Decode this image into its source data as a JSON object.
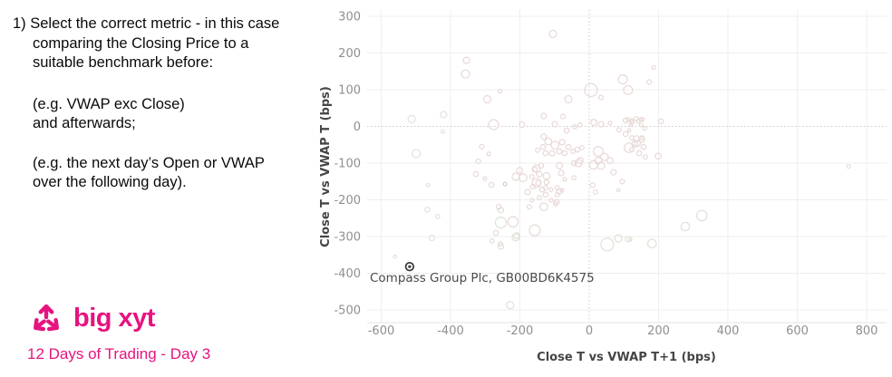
{
  "left_panel": {
    "para1": "1) Select the correct metric - in this case\ncomparing the Closing Price to a\nsuitable benchmark before:",
    "para2": "(e.g. VWAP exc Close)\nand afterwards;",
    "para3": "(e.g. the next day’s Open or VWAP\nover the following day)."
  },
  "brand": {
    "name": "big xyt",
    "tagline": "12 Days of Trading - Day 3",
    "color": "#e6137f"
  },
  "chart_data": {
    "type": "scatter",
    "xlabel": "Close T vs VWAP T+1 (bps)",
    "ylabel": "Close T vs VWAP T (bps)",
    "xlim": [
      -640,
      860
    ],
    "ylim": [
      -540,
      320
    ],
    "xticks": [
      -600,
      -400,
      -200,
      0,
      200,
      400,
      600,
      800
    ],
    "yticks": [
      300,
      200,
      100,
      0,
      -100,
      -200,
      -300,
      -400,
      -500
    ],
    "grid": true,
    "zero_lines": "dotted",
    "annotation": {
      "text": "Compass Group Plc, GB00BD6K4575",
      "x": -518,
      "y": -382
    },
    "highlight_point": {
      "x": -518,
      "y": -382,
      "color": "#3c3c3c"
    },
    "style": {
      "grid_color": "#f0eeee",
      "zero_line_color": "#c9c9c9",
      "axis_line_color": "#e5e3e3",
      "tick_color": "#8f8f8f",
      "title_color": "#454545",
      "annotation_color": "#4a4a4a",
      "bubble_colors": {
        "p": "#e8d9d7",
        "g": "#dce3d5",
        "n": "#e3e1e1",
        "d": "#d9c4c2"
      }
    },
    "points": [
      [
        -105,
        252,
        4,
        "p"
      ],
      [
        -354,
        180,
        3.5,
        "p"
      ],
      [
        -357,
        143,
        4.5,
        "p"
      ],
      [
        -294,
        74,
        4,
        "p"
      ],
      [
        -257,
        96,
        2,
        "p"
      ],
      [
        -131,
        28,
        3,
        "p"
      ],
      [
        -76,
        27,
        2.5,
        "p"
      ],
      [
        -276,
        5,
        5.5,
        "p"
      ],
      [
        -194,
        5,
        3,
        "p"
      ],
      [
        -60,
        74,
        4,
        "p"
      ],
      [
        5,
        99,
        7,
        "p"
      ],
      [
        34,
        79,
        2.5,
        "p"
      ],
      [
        97,
        128,
        5,
        "p"
      ],
      [
        112,
        99,
        5,
        "p"
      ],
      [
        186,
        161,
        2,
        "p"
      ],
      [
        173,
        121,
        2.5,
        "p"
      ],
      [
        -512,
        20,
        4,
        "n"
      ],
      [
        -420,
        32,
        3.5,
        "n"
      ],
      [
        -422,
        -14,
        2,
        "n"
      ],
      [
        -499,
        -74,
        4.5,
        "n"
      ],
      [
        -465,
        -160,
        1.8,
        "n"
      ],
      [
        -467,
        -227,
        2.7,
        "n"
      ],
      [
        -437,
        -245,
        2.3,
        "n"
      ],
      [
        -454,
        -304,
        3,
        "n"
      ],
      [
        -560,
        -355,
        1.8,
        "n"
      ],
      [
        748,
        -109,
        2,
        "n"
      ],
      [
        -228,
        -487,
        4,
        "g"
      ],
      [
        -255,
        -262,
        6,
        "g"
      ],
      [
        -255,
        -228,
        3,
        "g"
      ],
      [
        -212,
        -302,
        4,
        "g"
      ],
      [
        -255,
        -327,
        3,
        "g"
      ],
      [
        325,
        -243,
        5.7,
        "g"
      ],
      [
        277,
        -273,
        4.7,
        "g"
      ],
      [
        118,
        -308,
        2,
        "g"
      ],
      [
        181,
        -319,
        4.7,
        "g"
      ],
      [
        52,
        -322,
        7,
        "g"
      ],
      [
        84,
        -305,
        4,
        "g"
      ],
      [
        112,
        -307,
        3,
        "g"
      ],
      [
        -327,
        -130,
        2.7,
        "p"
      ],
      [
        -301,
        -142,
        2,
        "p"
      ],
      [
        -282,
        -159,
        2.7,
        "p"
      ],
      [
        -243,
        -157,
        2,
        "d"
      ],
      [
        -212,
        -137,
        4,
        "p"
      ],
      [
        -201,
        -120,
        3.3,
        "p"
      ],
      [
        -191,
        -140,
        4.3,
        "p"
      ],
      [
        -152,
        -115,
        4,
        "p"
      ],
      [
        -139,
        -107,
        2.7,
        "p"
      ],
      [
        -123,
        -135,
        3.7,
        "p"
      ],
      [
        -123,
        -152,
        2.7,
        "p"
      ],
      [
        -152,
        -154,
        4.7,
        "p"
      ],
      [
        -136,
        -172,
        2.7,
        "p"
      ],
      [
        -178,
        -179,
        3,
        "p"
      ],
      [
        -165,
        -201,
        2,
        "p"
      ],
      [
        -86,
        -107,
        3.3,
        "p"
      ],
      [
        -81,
        -127,
        3,
        "p"
      ],
      [
        -71,
        -144,
        2,
        "p"
      ],
      [
        -44,
        -140,
        2.3,
        "p"
      ],
      [
        -86,
        -177,
        3,
        "p"
      ],
      [
        -94,
        -206,
        2.7,
        "p"
      ],
      [
        -131,
        -219,
        4.3,
        "p"
      ],
      [
        -173,
        -219,
        2.3,
        "p"
      ],
      [
        -261,
        -219,
        2.7,
        "p"
      ],
      [
        -220,
        -260,
        5.7,
        "p"
      ],
      [
        -157,
        -283,
        6,
        "p"
      ],
      [
        -209,
        -298,
        3.3,
        "g"
      ],
      [
        -269,
        -290,
        2.7,
        "p"
      ],
      [
        -280,
        -312,
        2.3,
        "p"
      ],
      [
        -256,
        -320,
        2.3,
        "p"
      ],
      [
        18,
        -179,
        2.3,
        "p"
      ],
      [
        84,
        -174,
        1.7,
        "p"
      ],
      [
        -31,
        -100,
        4,
        "p"
      ],
      [
        13,
        -105,
        4.7,
        "p"
      ],
      [
        34,
        -107,
        4,
        "p"
      ],
      [
        -99,
        6,
        3,
        "p"
      ],
      [
        -65,
        -11,
        2.7,
        "p"
      ],
      [
        -42,
        -1,
        2.3,
        "p"
      ],
      [
        -26,
        4,
        2.3,
        "p"
      ],
      [
        13,
        11,
        3.3,
        "p"
      ],
      [
        34,
        6,
        3,
        "p"
      ],
      [
        60,
        9,
        2,
        "p"
      ],
      [
        105,
        16,
        2.7,
        "p"
      ],
      [
        123,
        11,
        2.3,
        "p"
      ],
      [
        141,
        14,
        2,
        "p"
      ],
      [
        154,
        19,
        2,
        "p"
      ],
      [
        86,
        -9,
        2.3,
        "p"
      ],
      [
        105,
        -21,
        2.7,
        "p"
      ],
      [
        123,
        -31,
        2.3,
        "p"
      ],
      [
        152,
        -36,
        3,
        "p"
      ],
      [
        -131,
        -28,
        3,
        "p"
      ],
      [
        -118,
        -41,
        3.7,
        "p"
      ],
      [
        -99,
        -51,
        4.3,
        "p"
      ],
      [
        -78,
        -43,
        3,
        "p"
      ],
      [
        -60,
        -56,
        2.7,
        "p"
      ],
      [
        -133,
        -56,
        2.7,
        "p"
      ],
      [
        -149,
        -65,
        2.3,
        "p"
      ],
      [
        -126,
        -73,
        2.7,
        "p"
      ],
      [
        -107,
        -73,
        3,
        "p"
      ],
      [
        -86,
        -68,
        2.7,
        "p"
      ],
      [
        -71,
        -73,
        2.7,
        "p"
      ],
      [
        -47,
        -68,
        2.3,
        "p"
      ],
      [
        -34,
        -63,
        2.7,
        "p"
      ],
      [
        -21,
        -58,
        2.3,
        "p"
      ],
      [
        26,
        -68,
        5.3,
        "p"
      ],
      [
        44,
        -83,
        4,
        "p"
      ],
      [
        60,
        -93,
        3.3,
        "p"
      ],
      [
        26,
        -93,
        3.7,
        "p"
      ],
      [
        -26,
        -93,
        3.3,
        "p"
      ],
      [
        -44,
        -100,
        2.7,
        "p"
      ],
      [
        139,
        -46,
        3.3,
        "p"
      ],
      [
        157,
        -56,
        2.7,
        "p"
      ],
      [
        123,
        -63,
        2.3,
        "p"
      ],
      [
        144,
        -73,
        2.7,
        "p"
      ],
      [
        162,
        -83,
        2.3,
        "p"
      ],
      [
        -157,
        -117,
        2.7,
        "p"
      ],
      [
        -144,
        -130,
        3,
        "p"
      ],
      [
        -165,
        -137,
        2.3,
        "p"
      ],
      [
        -146,
        -154,
        3,
        "p"
      ],
      [
        -162,
        -164,
        2.7,
        "p"
      ],
      [
        -126,
        -167,
        2.3,
        "p"
      ],
      [
        -110,
        -172,
        2,
        "p"
      ],
      [
        -92,
        -167,
        2.3,
        "p"
      ],
      [
        -78,
        -174,
        2,
        "p"
      ],
      [
        -92,
        -186,
        2.3,
        "p"
      ],
      [
        -126,
        -186,
        2.7,
        "p"
      ],
      [
        -144,
        -194,
        2.3,
        "p"
      ],
      [
        -110,
        -201,
        2,
        "p"
      ],
      [
        -97,
        -211,
        2.3,
        "p"
      ],
      [
        112,
        19,
        2,
        "p"
      ],
      [
        123,
        16,
        2,
        "p"
      ],
      [
        136,
        21,
        2.3,
        "p"
      ],
      [
        149,
        19,
        2,
        "p"
      ],
      [
        120,
        4,
        1.7,
        "p"
      ],
      [
        149,
        4,
        2,
        "p"
      ],
      [
        207,
        14,
        2.7,
        "p"
      ],
      [
        160,
        -6,
        2,
        "p"
      ],
      [
        115,
        -11,
        1.7,
        "p"
      ],
      [
        136,
        -33,
        3,
        "p"
      ],
      [
        152,
        -31,
        2.3,
        "p"
      ],
      [
        131,
        -48,
        3.3,
        "p"
      ],
      [
        115,
        -58,
        5.3,
        "p"
      ],
      [
        199,
        -81,
        3.3,
        "p"
      ],
      [
        -310,
        -55,
        2.5,
        "p"
      ],
      [
        -290,
        -75,
        2,
        "p"
      ],
      [
        -320,
        -95,
        2.5,
        "p"
      ],
      [
        70,
        -125,
        3,
        "p"
      ],
      [
        95,
        -150,
        2.5,
        "p"
      ],
      [
        10,
        -160,
        2.5,
        "p"
      ]
    ]
  }
}
